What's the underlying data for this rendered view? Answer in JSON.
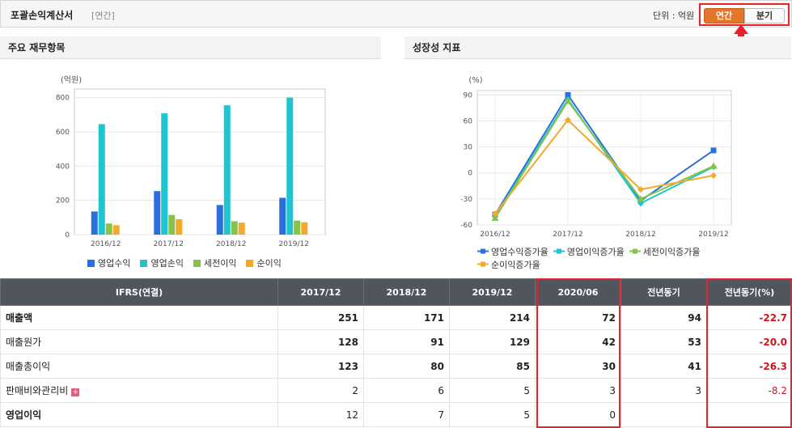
{
  "header": {
    "title": "포괄손익계산서",
    "subtitle": "[연간]",
    "unit": "단위 : 억원",
    "toggle_annual": "연간",
    "toggle_quarter": "분기"
  },
  "left_panel": {
    "title": "주요 재무항목"
  },
  "right_panel": {
    "title": "성장성 지표"
  },
  "chart_data": [
    {
      "type": "bar",
      "title": "",
      "ylabel": "(억원)",
      "categories": [
        "2016/12",
        "2017/12",
        "2018/12",
        "2019/12"
      ],
      "y_ticks": [
        "0",
        "200",
        "400",
        "600",
        "800"
      ],
      "ylim": [
        0,
        850
      ],
      "grid": true,
      "legend_position": "bottom",
      "series": [
        {
          "name": "영업수익",
          "color": "#2a6fdb",
          "values": [
            135,
            254,
            173,
            215
          ]
        },
        {
          "name": "영업손익",
          "color": "#1ec4cf",
          "values": [
            645,
            708,
            755,
            800
          ]
        },
        {
          "name": "세전이익",
          "color": "#86c347",
          "values": [
            65,
            115,
            78,
            82
          ]
        },
        {
          "name": "순이익",
          "color": "#f2a92c",
          "values": [
            55,
            90,
            70,
            72
          ]
        }
      ]
    },
    {
      "type": "line",
      "title": "",
      "ylabel": "(%)",
      "categories": [
        "2016/12",
        "2017/12",
        "2018/12",
        "2019/12"
      ],
      "y_ticks": [
        "-60",
        "-30",
        "0",
        "30",
        "60",
        "90"
      ],
      "ylim": [
        -60,
        95
      ],
      "grid": true,
      "legend_position": "bottom",
      "series": [
        {
          "name": "영업수익증가율",
          "color": "#2a6fdb",
          "marker": "square",
          "values": [
            -48,
            90,
            -32,
            26
          ]
        },
        {
          "name": "영업이익증가율",
          "color": "#1ec4cf",
          "marker": "diamond",
          "values": [
            -50,
            85,
            -35,
            7
          ]
        },
        {
          "name": "세전이익증가율",
          "color": "#86c347",
          "marker": "triangle",
          "values": [
            -52,
            83,
            -30,
            8
          ]
        },
        {
          "name": "순이익증가율",
          "color": "#f2a92c",
          "marker": "diamond",
          "values": [
            -47,
            61,
            -19,
            -3
          ]
        }
      ]
    }
  ],
  "table": {
    "headers": [
      "IFRS(연결)",
      "2017/12",
      "2018/12",
      "2019/12",
      "2020/06",
      "전년동기",
      "전년동기(%)"
    ],
    "rows": [
      {
        "label": "매출액",
        "values": [
          "251",
          "171",
          "214",
          "72",
          "94",
          "-22.7"
        ]
      },
      {
        "label": "매출원가",
        "values": [
          "128",
          "91",
          "129",
          "42",
          "53",
          "-20.0"
        ]
      },
      {
        "label": "매출총이익",
        "values": [
          "123",
          "80",
          "85",
          "30",
          "41",
          "-26.3"
        ]
      },
      {
        "label": "판매비와관리비",
        "expand": "+",
        "values": [
          "2",
          "6",
          "5",
          "3",
          "3",
          "-8.2"
        ]
      },
      {
        "label": "영업이익",
        "values": [
          "12",
          "7",
          "5",
          "0",
          "",
          ""
        ]
      }
    ]
  }
}
